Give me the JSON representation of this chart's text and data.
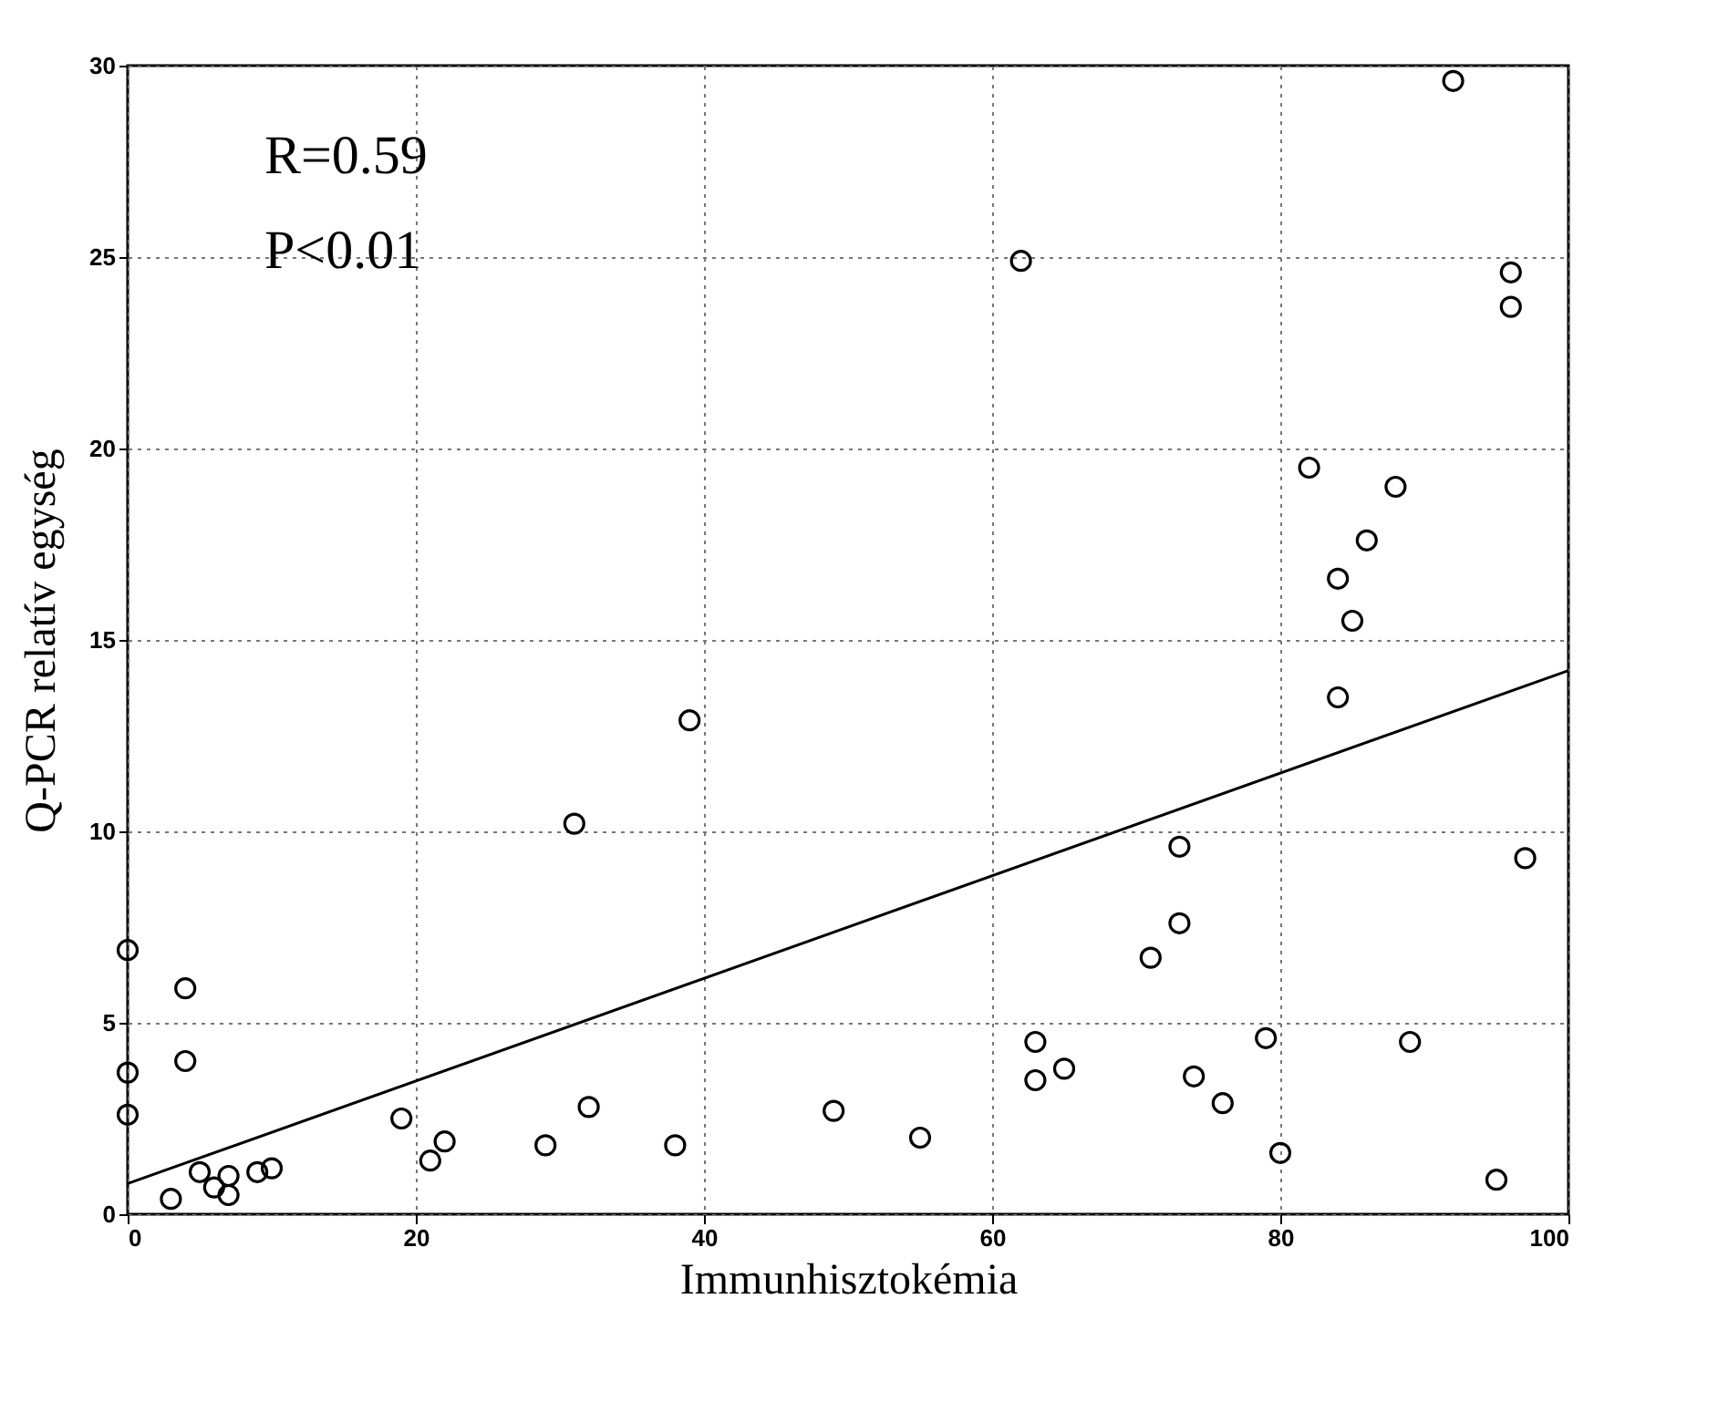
{
  "chart_data": {
    "type": "scatter",
    "xlabel": "Immunhisztokémia",
    "ylabel": "Q-PCR relatív egység",
    "annotations": [
      "R=0.59",
      "P<0.01"
    ],
    "x": [
      0,
      0,
      0,
      3,
      4,
      4,
      5,
      6,
      7,
      7,
      9,
      10,
      19,
      21,
      22,
      29,
      32,
      31,
      38,
      39,
      49,
      55,
      62,
      63,
      63,
      65,
      71,
      73,
      73,
      74,
      76,
      79,
      80,
      82,
      84,
      84,
      85,
      86,
      88,
      89,
      92,
      95,
      96,
      96,
      97
    ],
    "series": [
      {
        "color": "#000000",
        "values": [
          6.9,
          3.7,
          2.6,
          0.4,
          5.9,
          4.0,
          1.1,
          0.7,
          0.5,
          1.0,
          1.1,
          1.2,
          2.5,
          1.4,
          1.9,
          1.8,
          2.8,
          10.2,
          1.8,
          12.9,
          2.7,
          2.0,
          24.9,
          4.5,
          3.5,
          3.8,
          6.7,
          9.6,
          7.6,
          3.6,
          2.9,
          4.6,
          1.6,
          19.5,
          16.6,
          13.5,
          15.5,
          17.6,
          19.0,
          4.5,
          29.6,
          0.9,
          24.6,
          23.7,
          9.3
        ]
      },
      {
        "type": "line",
        "color": "#000000",
        "marker": "none",
        "x": [
          0,
          100
        ],
        "values": [
          0.8,
          14.2
        ]
      }
    ],
    "xlim": [
      0,
      100
    ],
    "ylim": [
      0,
      30
    ],
    "xticks": [
      0,
      20,
      40,
      60,
      80,
      100
    ],
    "yticks": [
      0,
      5,
      10,
      15,
      20,
      25,
      30
    ],
    "grid": true,
    "marker": "circle"
  }
}
